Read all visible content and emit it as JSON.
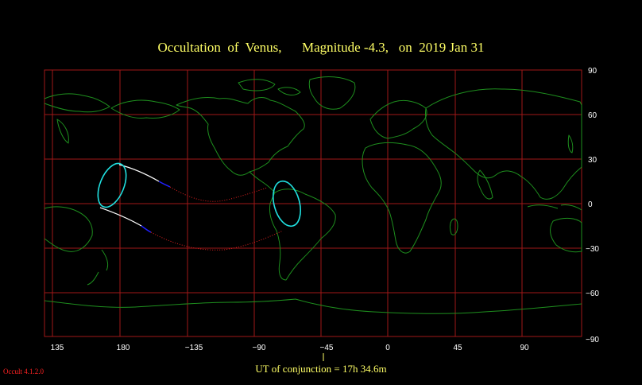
{
  "title": "Occultation  of  Venus,      Magnitude -4.3,   on  2019 Jan 31",
  "footer": "UT of conjunction = 17h 34.6m",
  "version": "Occult 4.1.2.0",
  "colors": {
    "grid": "#a01818",
    "coast": "#1e8f1e",
    "title": "#ffff66",
    "limit_lines": "#ffffff",
    "visibility_ellipse": "#20e0e0",
    "path_daylight": "#2020ff",
    "path_dotted": "#e02020"
  },
  "axes": {
    "longitude_ticks": [
      "135",
      "180",
      "−135",
      "−90",
      "−45",
      "0",
      "45",
      "90"
    ],
    "latitude_ticks": [
      "90",
      "60",
      "30",
      "0",
      "−30",
      "−60",
      "−90"
    ]
  }
}
